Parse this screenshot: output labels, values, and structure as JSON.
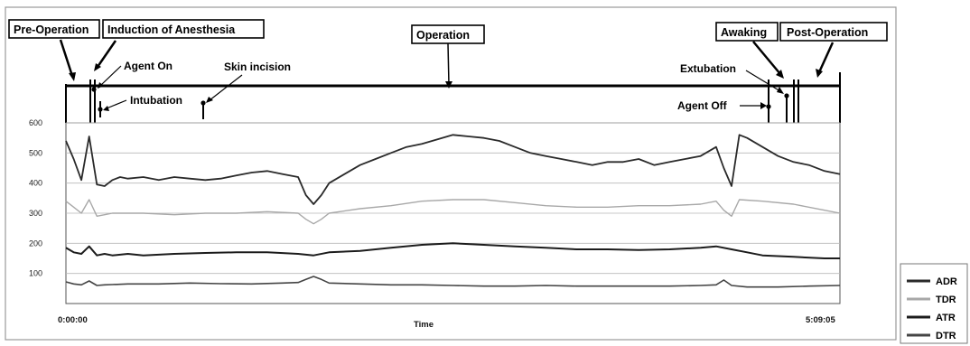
{
  "phases": {
    "pre_operation": "Pre-Operation",
    "induction": "Induction of Anesthesia",
    "operation": "Operation",
    "awaking": "Awaking",
    "post_operation": "Post-Operation"
  },
  "events": {
    "agent_on": "Agent On",
    "intubation": "Intubation",
    "skin_incision": "Skin incision",
    "extubation": "Extubation",
    "agent_off": "Agent Off"
  },
  "chart_data": {
    "type": "line",
    "xlabel": "Time",
    "ylabel": "",
    "x_start_label": "0:00:00",
    "x_end_label": "5:09:05",
    "xlim": [
      0,
      100
    ],
    "ylim": [
      0,
      600
    ],
    "y_ticks": [
      100,
      200,
      300,
      400,
      500,
      600
    ],
    "y_tick_labels": [
      "100",
      "200",
      "300",
      "400",
      "500",
      "600"
    ],
    "grid": true,
    "legend_position": "bottom-right",
    "series": [
      {
        "name": "ADR",
        "color": "#2a2a2a",
        "x": [
          0,
          1,
          2,
          3,
          4,
          5,
          6,
          7,
          8,
          10,
          12,
          14,
          16,
          18,
          20,
          22,
          24,
          26,
          28,
          30,
          31,
          32,
          33,
          34,
          36,
          38,
          40,
          42,
          44,
          46,
          48,
          50,
          52,
          54,
          56,
          58,
          60,
          62,
          64,
          66,
          68,
          70,
          72,
          74,
          76,
          78,
          80,
          82,
          84,
          85,
          86,
          87,
          88,
          90,
          92,
          94,
          96,
          98,
          100
        ],
        "values": [
          540,
          480,
          410,
          555,
          395,
          390,
          410,
          420,
          415,
          420,
          410,
          420,
          415,
          410,
          415,
          425,
          435,
          440,
          430,
          420,
          360,
          330,
          360,
          400,
          430,
          460,
          480,
          500,
          520,
          530,
          545,
          560,
          555,
          550,
          540,
          520,
          500,
          490,
          480,
          470,
          460,
          470,
          470,
          480,
          460,
          470,
          480,
          490,
          520,
          450,
          390,
          560,
          550,
          520,
          490,
          470,
          460,
          440,
          430
        ]
      },
      {
        "name": "TDR",
        "color": "#a8a8a8",
        "x": [
          0,
          1,
          2,
          3,
          4,
          5,
          6,
          8,
          10,
          14,
          18,
          22,
          26,
          30,
          31,
          32,
          33,
          34,
          38,
          42,
          46,
          50,
          54,
          58,
          62,
          66,
          70,
          74,
          78,
          82,
          84,
          85,
          86,
          87,
          90,
          94,
          98,
          100
        ],
        "values": [
          340,
          320,
          300,
          345,
          290,
          295,
          300,
          300,
          300,
          295,
          300,
          300,
          305,
          300,
          280,
          265,
          280,
          300,
          315,
          325,
          340,
          345,
          345,
          335,
          325,
          320,
          320,
          325,
          325,
          330,
          340,
          310,
          290,
          345,
          340,
          330,
          310,
          300
        ]
      },
      {
        "name": "ATR",
        "color": "#1c1c1c",
        "x": [
          0,
          1,
          2,
          3,
          4,
          5,
          6,
          8,
          10,
          14,
          18,
          22,
          26,
          30,
          32,
          34,
          38,
          42,
          46,
          50,
          54,
          58,
          62,
          66,
          70,
          74,
          78,
          82,
          84,
          86,
          88,
          90,
          94,
          98,
          100
        ],
        "values": [
          185,
          170,
          165,
          190,
          160,
          165,
          160,
          165,
          160,
          165,
          168,
          170,
          170,
          165,
          160,
          170,
          175,
          185,
          195,
          200,
          195,
          190,
          185,
          180,
          180,
          178,
          180,
          185,
          190,
          180,
          170,
          160,
          155,
          150,
          150
        ]
      },
      {
        "name": "DTR",
        "color": "#444444",
        "x": [
          0,
          1,
          2,
          3,
          4,
          5,
          6,
          8,
          12,
          16,
          20,
          24,
          28,
          30,
          31,
          32,
          33,
          34,
          38,
          42,
          46,
          50,
          54,
          58,
          62,
          66,
          70,
          74,
          78,
          82,
          84,
          85,
          86,
          88,
          92,
          96,
          100
        ],
        "values": [
          72,
          65,
          62,
          75,
          60,
          62,
          63,
          65,
          65,
          68,
          66,
          65,
          68,
          70,
          80,
          90,
          80,
          68,
          65,
          62,
          62,
          60,
          58,
          58,
          60,
          58,
          58,
          58,
          58,
          60,
          62,
          78,
          60,
          55,
          55,
          58,
          60
        ]
      }
    ]
  }
}
